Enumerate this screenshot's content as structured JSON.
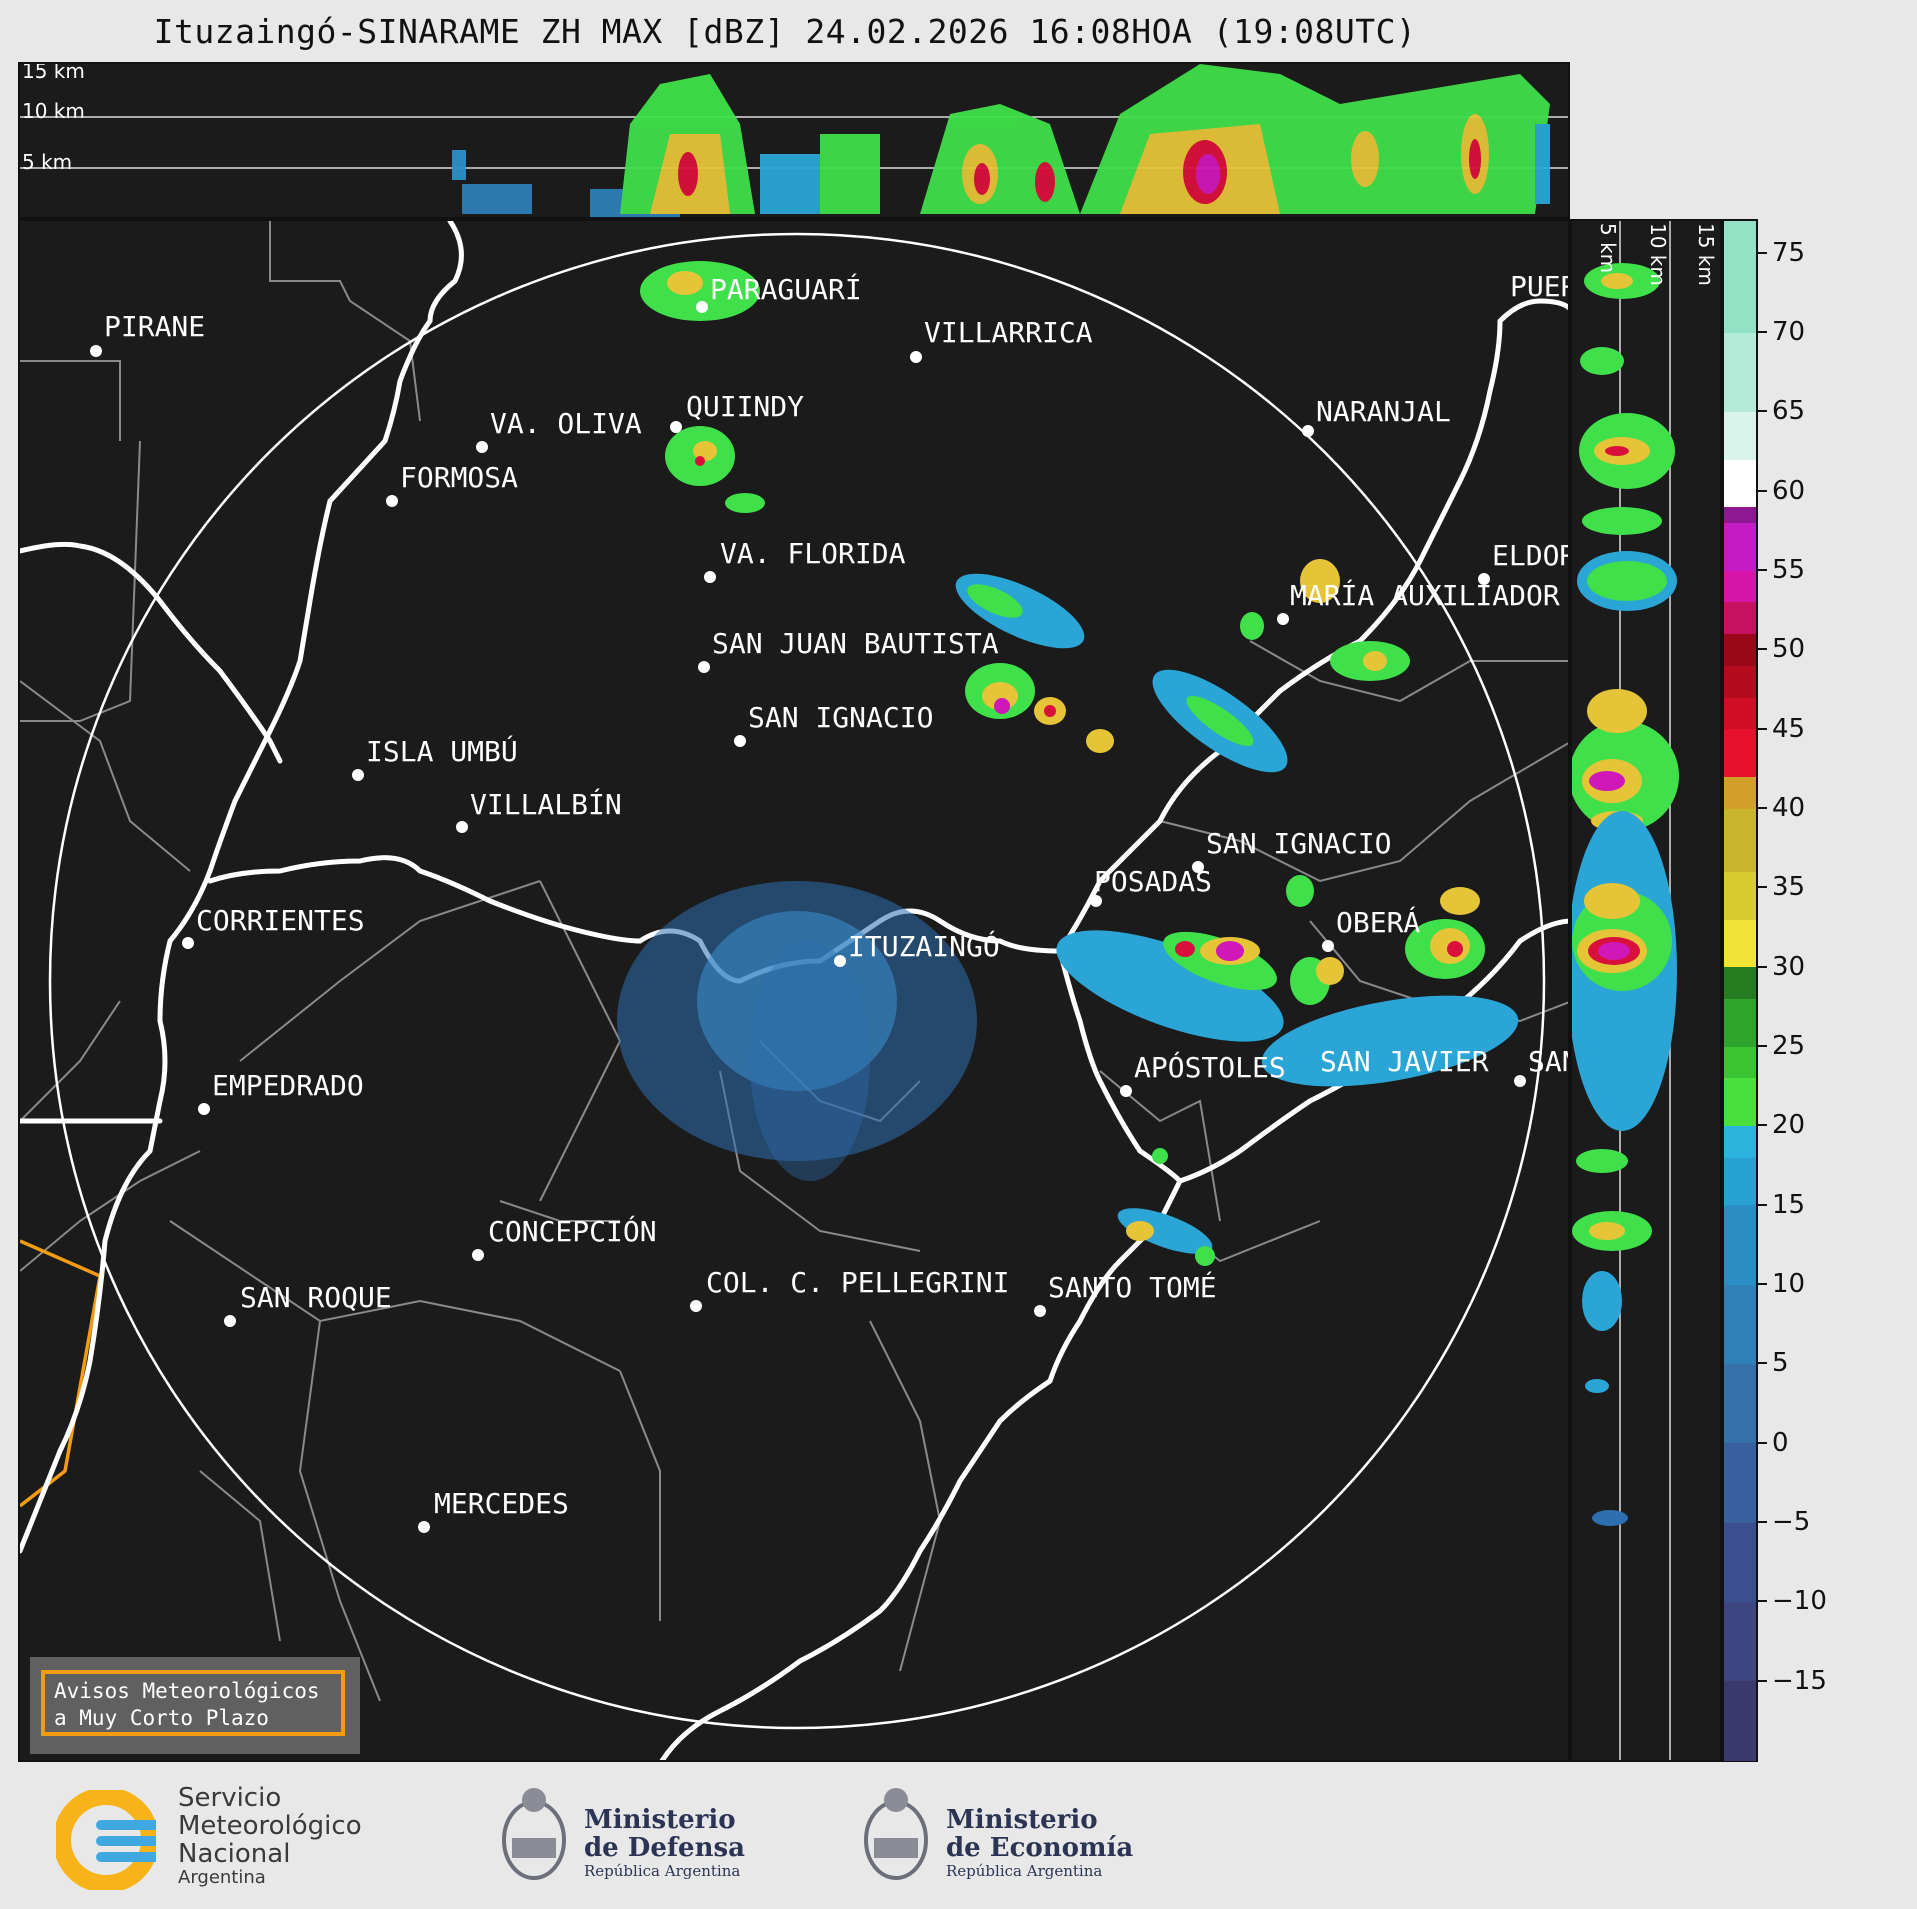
{
  "title": "Ituzaingó-SINARAME ZH MAX [dBZ] 24.02.2026 16:08HOA (19:08UTC)",
  "top_panel": {
    "height_labels": [
      "15 km",
      "10 km",
      "5 km"
    ]
  },
  "side_panel": {
    "height_labels": [
      "5 km",
      "10 km",
      "15 km"
    ]
  },
  "cities": [
    {
      "name": "PARAGUARÍ"
    },
    {
      "name": "VILLARRICA"
    },
    {
      "name": "PIRANE"
    },
    {
      "name": "VA. OLIVA"
    },
    {
      "name": "QUIINDY"
    },
    {
      "name": "NARANJAL"
    },
    {
      "name": "FORMOSA"
    },
    {
      "name": "VA. FLORIDA"
    },
    {
      "name": "ELDOR"
    },
    {
      "name": "MARÍA AUXILIADOR"
    },
    {
      "name": "SAN JUAN BAUTISTA"
    },
    {
      "name": "SAN IGNACIO"
    },
    {
      "name": "ISLA UMBÚ"
    },
    {
      "name": "VILLALBÍN"
    },
    {
      "name": "SAN IGNACIO"
    },
    {
      "name": "POSADAS"
    },
    {
      "name": "CORRIENTES"
    },
    {
      "name": "ITUZAINGÓ"
    },
    {
      "name": "OBERÁ"
    },
    {
      "name": "APÓSTOLES"
    },
    {
      "name": "SAN JAVIER"
    },
    {
      "name": "SAN"
    },
    {
      "name": "EMPEDRADO"
    },
    {
      "name": "CONCEPCIÓN"
    },
    {
      "name": "COL. C. PELLEGRINI"
    },
    {
      "name": "SANTO TOMÉ"
    },
    {
      "name": "SAN ROQUE"
    },
    {
      "name": "MERCEDES"
    },
    {
      "name": "PUER"
    }
  ],
  "colorbar": {
    "ticks": [
      "75",
      "70",
      "65",
      "60",
      "55",
      "50",
      "45",
      "40",
      "35",
      "30",
      "25",
      "20",
      "15",
      "10",
      "5",
      "0",
      "−5",
      "−10",
      "−15"
    ]
  },
  "warning": {
    "line1": "Avisos Meteorológicos",
    "line2": "a Muy Corto Plazo"
  },
  "footer": {
    "smn": [
      "Servicio",
      "Meteorológico",
      "Nacional",
      "Argentina"
    ],
    "defensa": [
      "Ministerio",
      "de Defensa",
      "República Argentina"
    ],
    "economia": [
      "Ministerio",
      "de Economía",
      "República Argentina"
    ]
  },
  "colors": {
    "background": "#1b1b1b",
    "border_line": "#ffffff",
    "province_line": "#8a8a8a",
    "warning_orange": "#f39c12"
  }
}
